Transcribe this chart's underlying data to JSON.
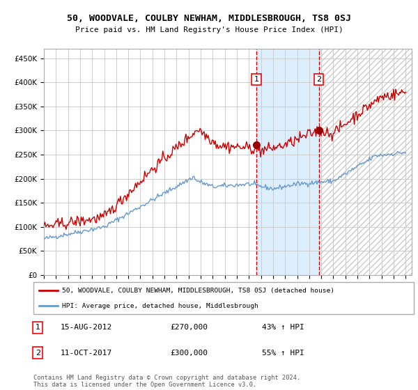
{
  "title": "50, WOODVALE, COULBY NEWHAM, MIDDLESBROUGH, TS8 0SJ",
  "subtitle": "Price paid vs. HM Land Registry's House Price Index (HPI)",
  "legend_line1": "50, WOODVALE, COULBY NEWHAM, MIDDLESBROUGH, TS8 0SJ (detached house)",
  "legend_line2": "HPI: Average price, detached house, Middlesbrough",
  "annotation1_date": "15-AUG-2012",
  "annotation1_price": "£270,000",
  "annotation1_hpi": "43% ↑ HPI",
  "annotation2_date": "11-OCT-2017",
  "annotation2_price": "£300,000",
  "annotation2_hpi": "55% ↑ HPI",
  "footer": "Contains HM Land Registry data © Crown copyright and database right 2024.\nThis data is licensed under the Open Government Licence v3.0.",
  "red_line_color": "#cc0000",
  "blue_line_color": "#6699cc",
  "marker_color": "#990000",
  "vline_color": "#cc0000",
  "shade_color": "#ddeeff",
  "background_color": "#ffffff",
  "grid_color": "#cccccc",
  "ylim": [
    0,
    470000
  ],
  "yticks": [
    0,
    50000,
    100000,
    150000,
    200000,
    250000,
    300000,
    350000,
    400000,
    450000
  ],
  "sale1_year": 2012.625,
  "sale1_price": 270000,
  "sale2_year": 2017.79,
  "sale2_price": 300000
}
